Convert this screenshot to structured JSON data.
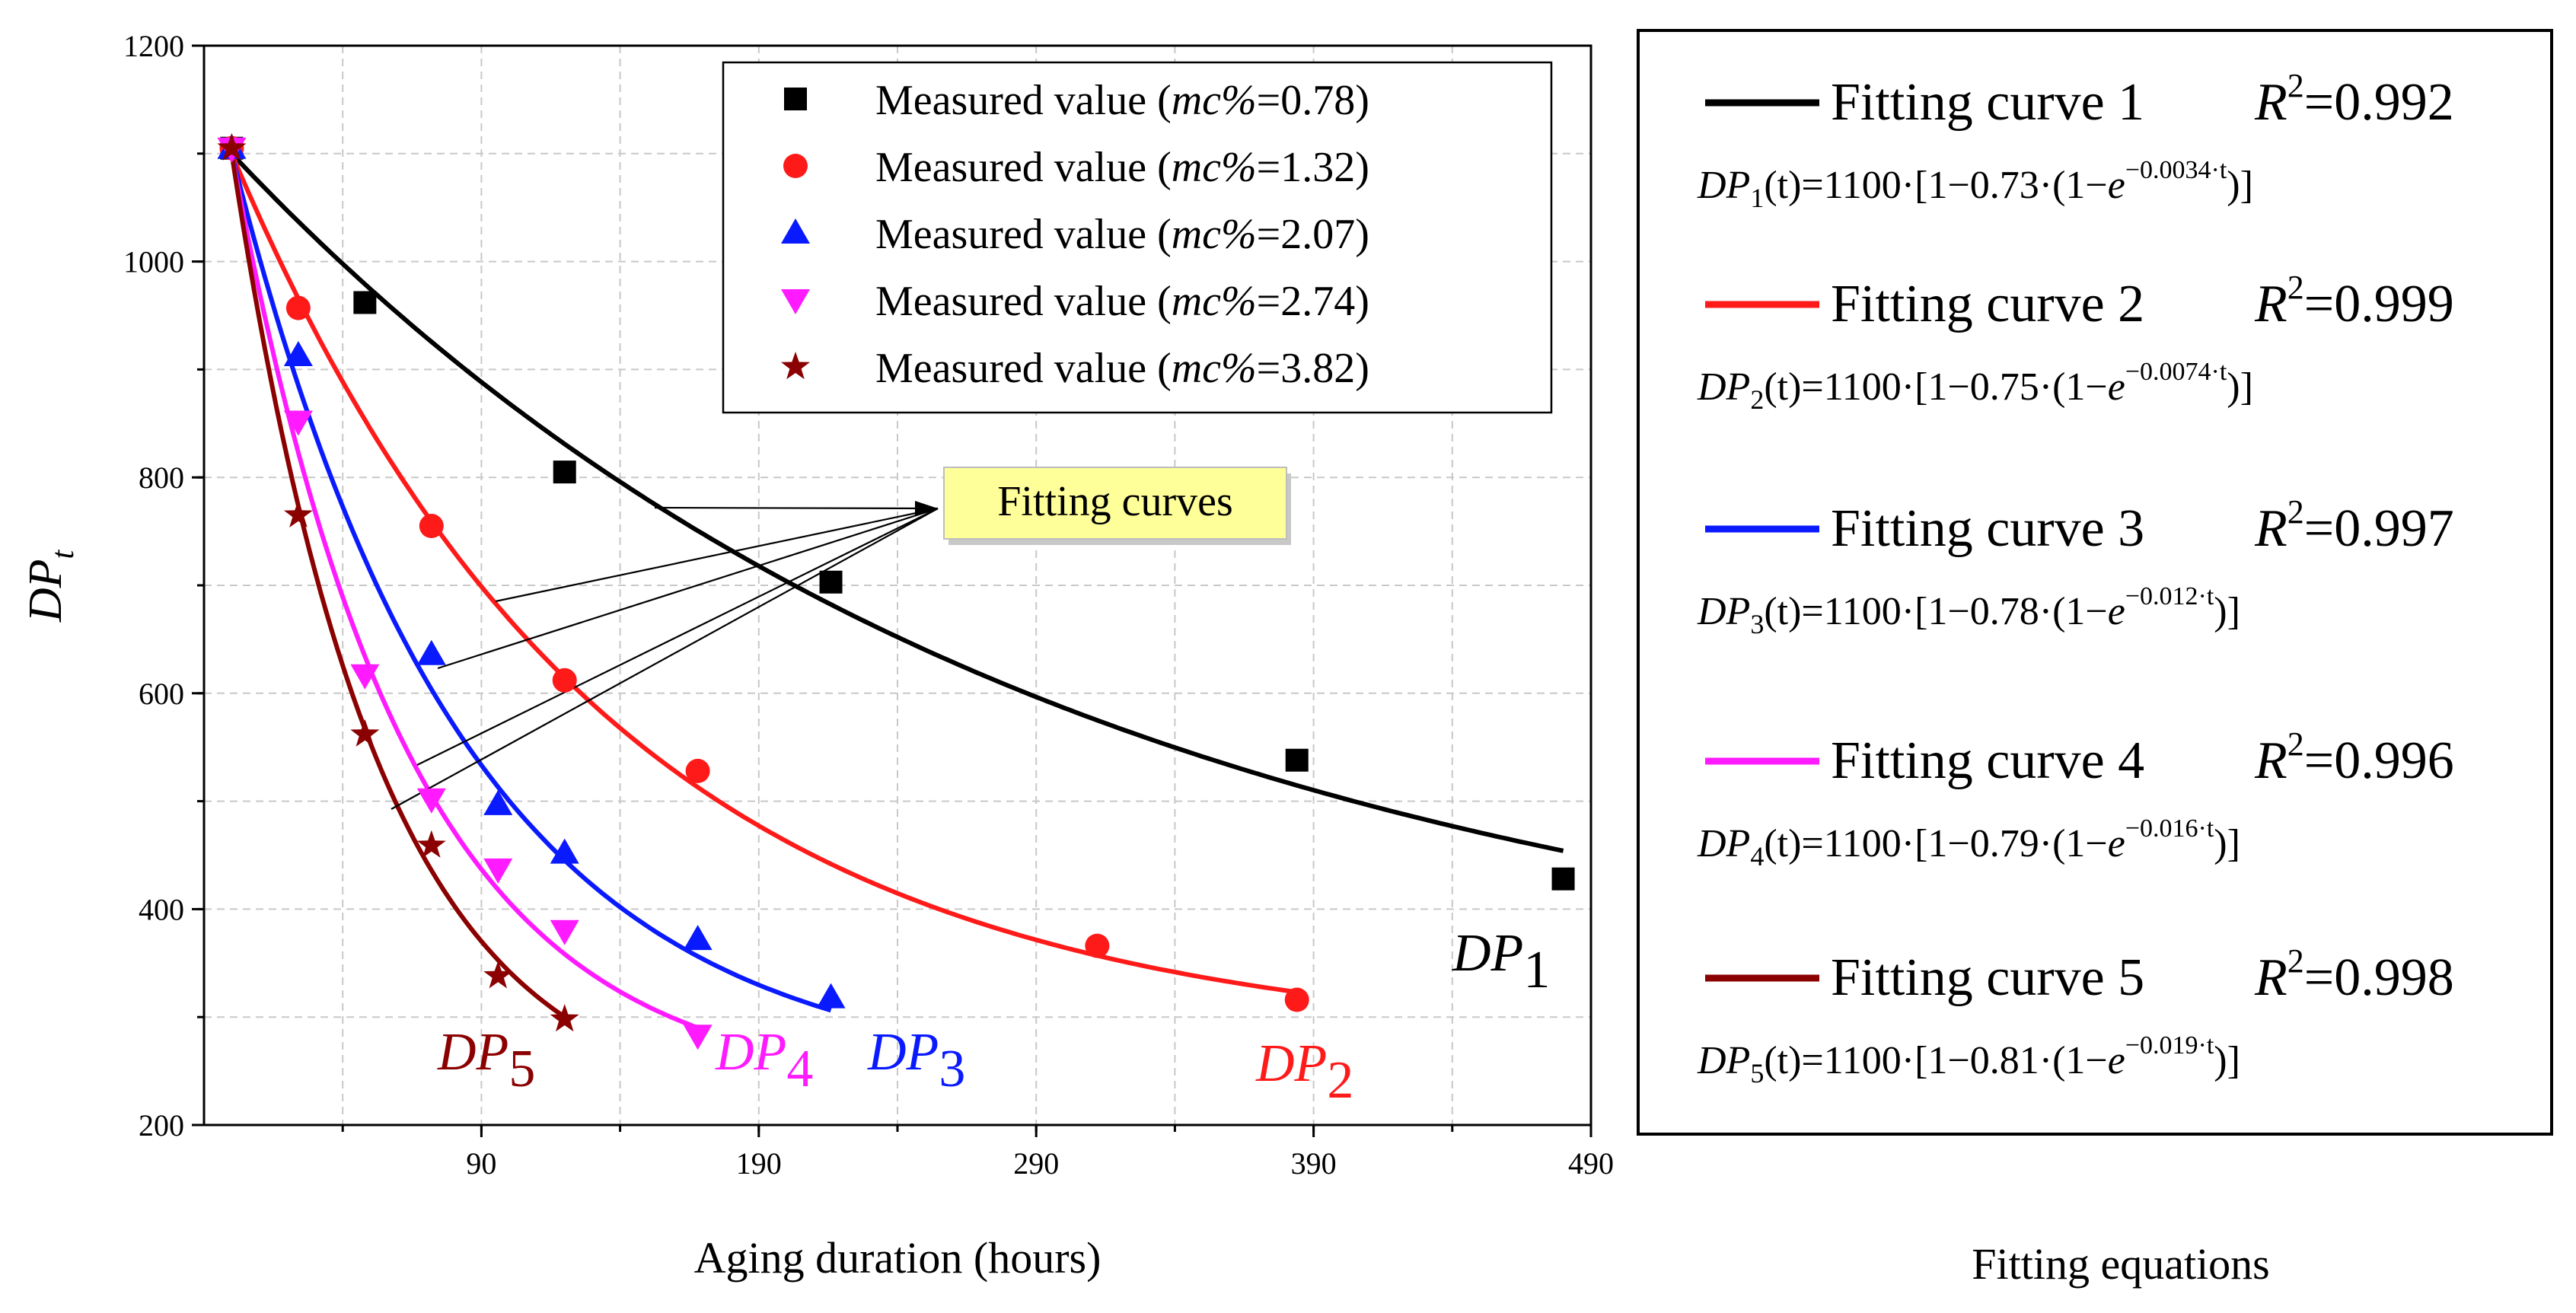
{
  "chart_data": {
    "type": "scatter",
    "title": "",
    "xlabel": "Aging duration (hours)",
    "ylabel": "DP",
    "ylabel_sub": "t",
    "xlim": [
      -10,
      490
    ],
    "ylim": [
      200,
      1200
    ],
    "xticks": [
      90,
      190,
      290,
      390,
      490
    ],
    "yticks": [
      200,
      400,
      600,
      800,
      1000,
      1200
    ],
    "grid": true,
    "legend_position": "top-right",
    "series": [
      {
        "name": "Measured value (mc%=0.78)",
        "legend_prefix": "Measured value (",
        "legend_var": "mc%",
        "legend_suffix": "=0.78)",
        "marker": "square",
        "color": "#000000",
        "x": [
          0,
          48,
          120,
          216,
          384,
          480
        ],
        "y": [
          1105,
          962,
          805,
          703,
          538,
          428
        ],
        "fit": {
          "a": 0.73,
          "k": 0.0034,
          "xmax": 480
        },
        "curve_label": "DP",
        "curve_label_sub": "1"
      },
      {
        "name": "Measured value (mc%=1.32)",
        "legend_prefix": "Measured value (",
        "legend_var": "mc%",
        "legend_suffix": "=1.32)",
        "marker": "circle",
        "color": "#ff1a1a",
        "x": [
          0,
          24,
          72,
          120,
          168,
          312,
          384
        ],
        "y": [
          1105,
          957,
          755,
          612,
          528,
          366,
          316
        ],
        "fit": {
          "a": 0.75,
          "k": 0.0074,
          "xmax": 384
        },
        "curve_label": "DP",
        "curve_label_sub": "2"
      },
      {
        "name": "Measured value (mc%=2.07)",
        "legend_prefix": "Measured value (",
        "legend_var": "mc%",
        "legend_suffix": "=2.07)",
        "marker": "triangle-up",
        "color": "#0a1aff",
        "x": [
          0,
          24,
          72,
          96,
          120,
          168,
          216
        ],
        "y": [
          1105,
          913,
          636,
          497,
          452,
          372,
          318
        ],
        "fit": {
          "a": 0.78,
          "k": 0.012,
          "xmax": 216
        },
        "curve_label": "DP",
        "curve_label_sub": "3"
      },
      {
        "name": "Measured value (mc%=2.74)",
        "legend_prefix": "Measured value (",
        "legend_var": "mc%",
        "legend_suffix": "=2.74)",
        "marker": "triangle-down",
        "color": "#ff1aff",
        "x": [
          0,
          24,
          48,
          72,
          96,
          120,
          168
        ],
        "y": [
          1105,
          852,
          617,
          502,
          437,
          380,
          283
        ],
        "fit": {
          "a": 0.79,
          "k": 0.016,
          "xmax": 168
        },
        "curve_label": "DP",
        "curve_label_sub": "4"
      },
      {
        "name": "Measured value (mc%=3.82)",
        "legend_prefix": "Measured value (",
        "legend_var": "mc%",
        "legend_suffix": "=3.82)",
        "marker": "star",
        "color": "#8b0000",
        "x": [
          0,
          24,
          48,
          72,
          96,
          120
        ],
        "y": [
          1105,
          765,
          562,
          459,
          338,
          298
        ],
        "fit": {
          "a": 0.81,
          "k": 0.019,
          "xmax": 120
        },
        "curve_label": "DP",
        "curve_label_sub": "5"
      }
    ],
    "annotation": {
      "text": "Fitting curves"
    },
    "equations_panel": {
      "caption": "Fitting equations",
      "entries": [
        {
          "label": "Fitting curve 1",
          "r2_label": "R",
          "r2_value": "=0.992",
          "sub": "1",
          "coef": "0.73",
          "rate": "−0.0034",
          "color": "#000000"
        },
        {
          "label": "Fitting curve 2",
          "r2_label": "R",
          "r2_value": "=0.999",
          "sub": "2",
          "coef": "0.75",
          "rate": "−0.0074",
          "color": "#ff1a1a"
        },
        {
          "label": "Fitting curve 3",
          "r2_label": "R",
          "r2_value": "=0.997",
          "sub": "3",
          "coef": "0.78",
          "rate": "−0.012",
          "color": "#0a1aff"
        },
        {
          "label": "Fitting curve 4",
          "r2_label": "R",
          "r2_value": "=0.996",
          "sub": "4",
          "coef": "0.79",
          "rate": "−0.016",
          "color": "#ff1aff"
        },
        {
          "label": "Fitting curve 5",
          "r2_label": "R",
          "r2_value": "=0.998",
          "sub": "5",
          "coef": "0.81",
          "rate": "−0.019",
          "color": "#8b0000"
        }
      ],
      "eq_parts": {
        "dp": "DP",
        "t": "(t)=1100·[1−",
        "mid": "·(1−",
        "e": "e",
        "exp_t": "·t",
        "close": ")]",
        "r2_exp": "2"
      }
    }
  }
}
